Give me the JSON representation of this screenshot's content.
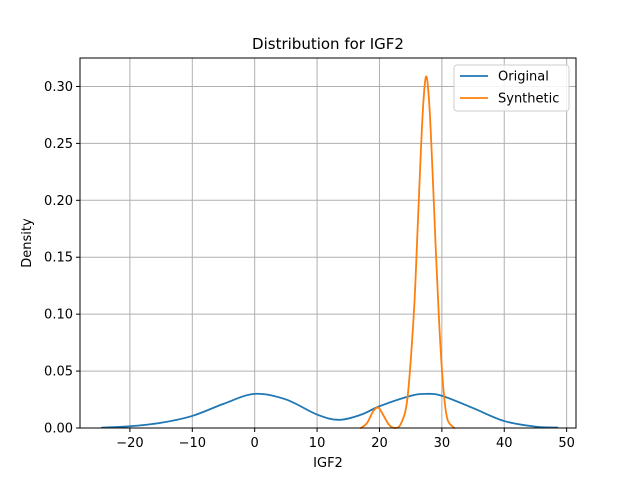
{
  "chart_data": {
    "type": "line",
    "title": "Distribution for IGF2",
    "xlabel": "IGF2",
    "ylabel": "Density",
    "xlim": [
      -28,
      51.5
    ],
    "ylim": [
      0,
      0.325
    ],
    "xticks": [
      -20,
      -10,
      0,
      10,
      20,
      30,
      40,
      50
    ],
    "xtick_labels": [
      "−20",
      "−10",
      "0",
      "10",
      "20",
      "30",
      "40",
      "50"
    ],
    "yticks": [
      0.0,
      0.05,
      0.1,
      0.15,
      0.2,
      0.25,
      0.3
    ],
    "ytick_labels": [
      "0.00",
      "0.05",
      "0.10",
      "0.15",
      "0.20",
      "0.25",
      "0.30"
    ],
    "grid": true,
    "legend_position": "top-right",
    "series": [
      {
        "name": "Original",
        "color": "#1f77b4",
        "x": [
          -24.5,
          -20,
          -15,
          -10,
          -5,
          0,
          5,
          10,
          13.5,
          17,
          20,
          25,
          27.5,
          30,
          35,
          40,
          45,
          48.5
        ],
        "y": [
          0.0003,
          0.0015,
          0.0046,
          0.0106,
          0.0212,
          0.03,
          0.0251,
          0.0118,
          0.0072,
          0.0116,
          0.0191,
          0.0282,
          0.03,
          0.0283,
          0.0175,
          0.0061,
          0.0012,
          0.0004
        ]
      },
      {
        "name": "Synthetic",
        "color": "#ff7f0e",
        "x": [
          17,
          18,
          19,
          19.8,
          20.5,
          21.5,
          22.5,
          23.5,
          24.5,
          25.5,
          26,
          26.5,
          27,
          27.5,
          28,
          28.5,
          29,
          29.5,
          30,
          30.5,
          31,
          32
        ],
        "y": [
          0.0,
          0.0043,
          0.0147,
          0.018,
          0.0124,
          0.0031,
          0.0,
          0.0045,
          0.027,
          0.1,
          0.16,
          0.226,
          0.283,
          0.309,
          0.283,
          0.226,
          0.16,
          0.1,
          0.052,
          0.0205,
          0.006,
          0.0
        ]
      }
    ]
  }
}
